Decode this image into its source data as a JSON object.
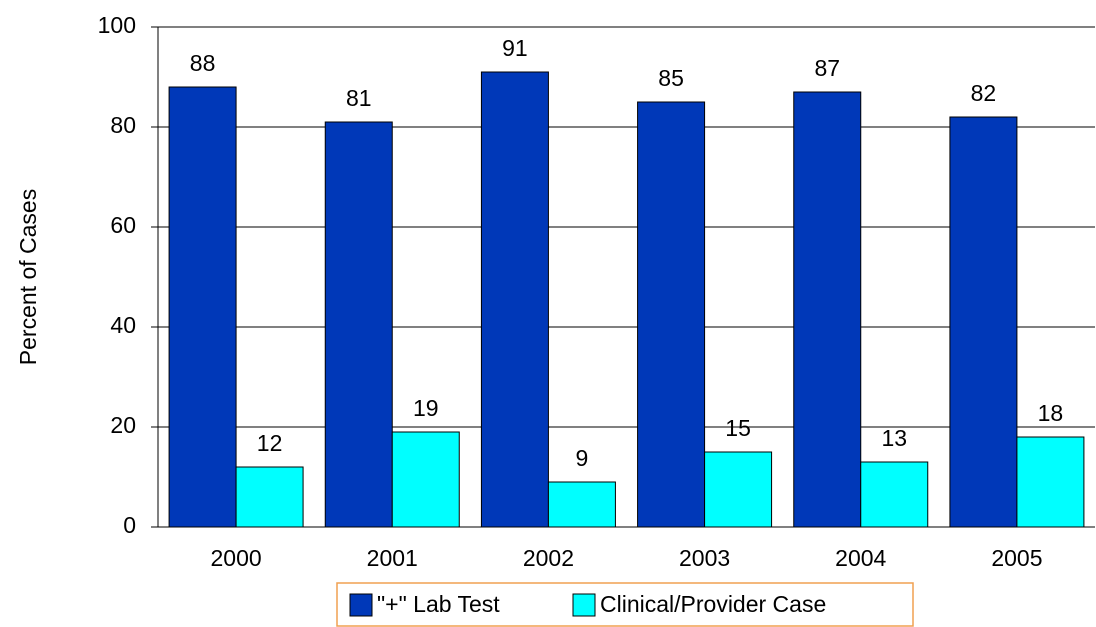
{
  "chart_data": {
    "type": "bar",
    "y_label": "Percent of Cases",
    "categories": [
      "2000",
      "2001",
      "2002",
      "2003",
      "2004",
      "2005"
    ],
    "series": [
      {
        "name": "\"+\" Lab Test",
        "color": "#0038b8",
        "values": [
          88,
          81,
          91,
          85,
          87,
          82
        ]
      },
      {
        "name": "Clinical/Provider Case",
        "color": "#00ffff",
        "values": [
          12,
          19,
          9,
          15,
          13,
          18
        ]
      }
    ],
    "ylim": [
      0,
      100
    ],
    "yticks": [
      0,
      20,
      40,
      60,
      80,
      100
    ],
    "grid": true
  }
}
